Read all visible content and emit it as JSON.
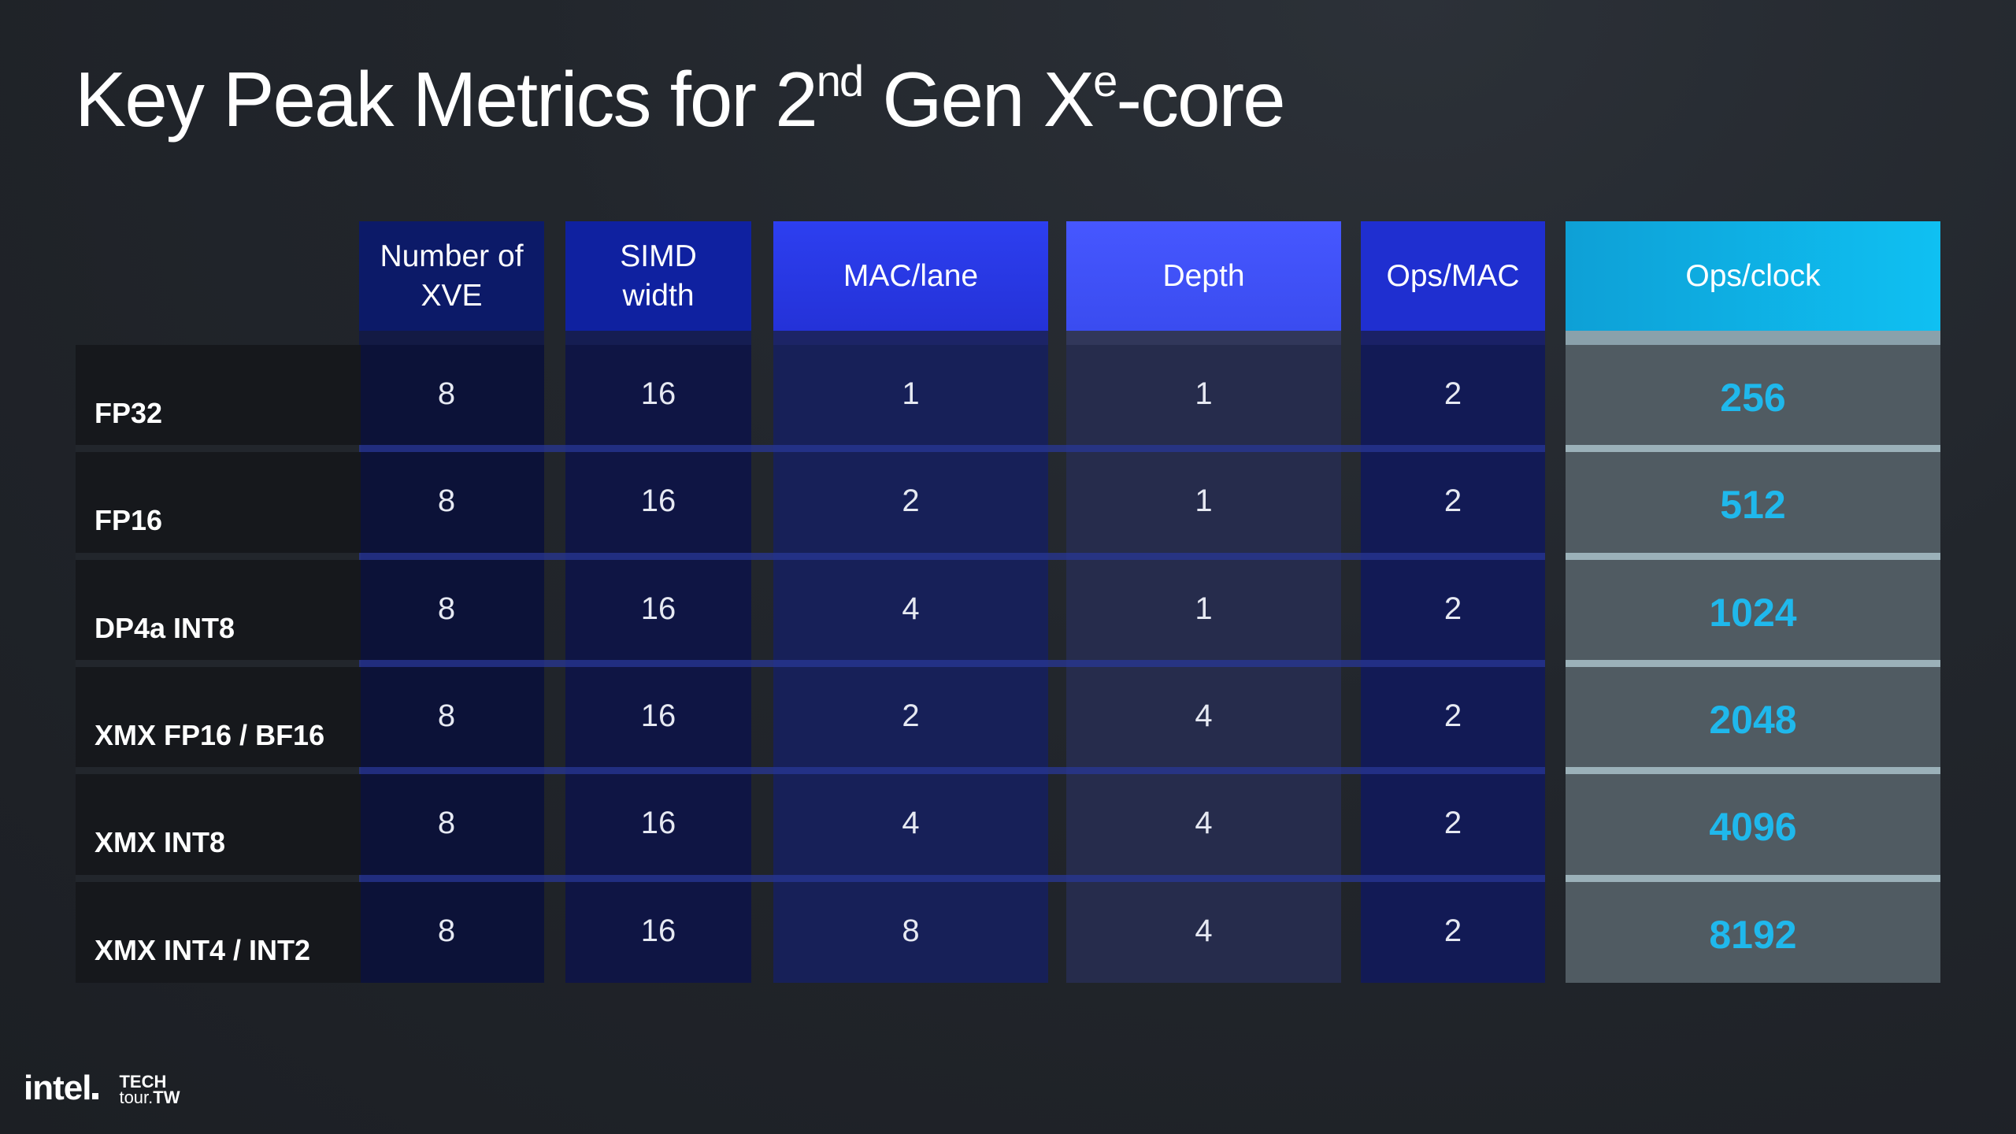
{
  "title": {
    "pre": "Key Peak Metrics for 2",
    "sup1": "nd",
    "mid": " Gen X",
    "sup2": "e",
    "post": "-core"
  },
  "table": {
    "headers": [
      "Number of XVE",
      "SIMD width",
      "MAC/lane",
      "Depth",
      "Ops/MAC",
      "Ops/clock"
    ],
    "rows": [
      {
        "label": "FP32",
        "xve": "8",
        "simd": "16",
        "mac_lane": "1",
        "depth": "1",
        "ops_mac": "2",
        "ops_clock": "256"
      },
      {
        "label": "FP16",
        "xve": "8",
        "simd": "16",
        "mac_lane": "2",
        "depth": "1",
        "ops_mac": "2",
        "ops_clock": "512"
      },
      {
        "label": "DP4a INT8",
        "xve": "8",
        "simd": "16",
        "mac_lane": "4",
        "depth": "1",
        "ops_mac": "2",
        "ops_clock": "1024"
      },
      {
        "label": "XMX FP16 / BF16",
        "xve": "8",
        "simd": "16",
        "mac_lane": "2",
        "depth": "4",
        "ops_mac": "2",
        "ops_clock": "2048"
      },
      {
        "label": "XMX INT8",
        "xve": "8",
        "simd": "16",
        "mac_lane": "4",
        "depth": "4",
        "ops_mac": "2",
        "ops_clock": "4096"
      },
      {
        "label": "XMX INT4 / INT2",
        "xve": "8",
        "simd": "16",
        "mac_lane": "8",
        "depth": "4",
        "ops_mac": "2",
        "ops_clock": "8192"
      }
    ]
  },
  "logo": {
    "brand": "intel",
    "event_line1": "TECH",
    "event_line2": "tour.",
    "event_suffix": "TW"
  },
  "colors": {
    "header_navy": "#0d1a6e",
    "header_blue": "#2e3ff2",
    "header_cyan": "#13b4e6",
    "ops_value": "#1fb8ec",
    "ops_column_bg": "#515c63"
  }
}
